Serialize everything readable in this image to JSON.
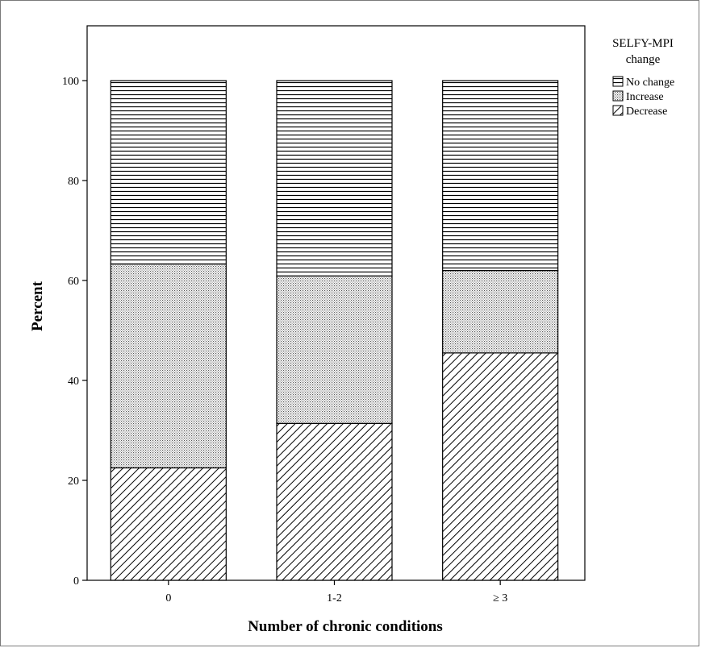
{
  "chart_data": {
    "type": "bar",
    "stacked": true,
    "xlabel": "Number of chronic conditions",
    "ylabel": "Percent",
    "categories": [
      "0",
      "1-2",
      "≥ 3"
    ],
    "ylim": [
      0,
      100
    ],
    "yticks": [
      0,
      20,
      40,
      60,
      80,
      100
    ],
    "grid": false,
    "legend": {
      "title": "SELFY-MPI change",
      "title_lines": [
        "SELFY-MPI",
        "change"
      ],
      "placement": "top-right outside"
    },
    "series": [
      {
        "name": "Decrease",
        "pattern": "diagonal-hatch",
        "values": [
          22.5,
          31.4,
          45.5
        ]
      },
      {
        "name": "Increase",
        "pattern": "dotted",
        "values": [
          40.8,
          29.5,
          16.5
        ]
      },
      {
        "name": "No change",
        "pattern": "horizontal-lines",
        "values": [
          36.7,
          39.1,
          38.0
        ]
      }
    ],
    "legend_order": [
      "No change",
      "Increase",
      "Decrease"
    ],
    "colors": {
      "stroke": "#000000",
      "background": "#ffffff"
    }
  }
}
